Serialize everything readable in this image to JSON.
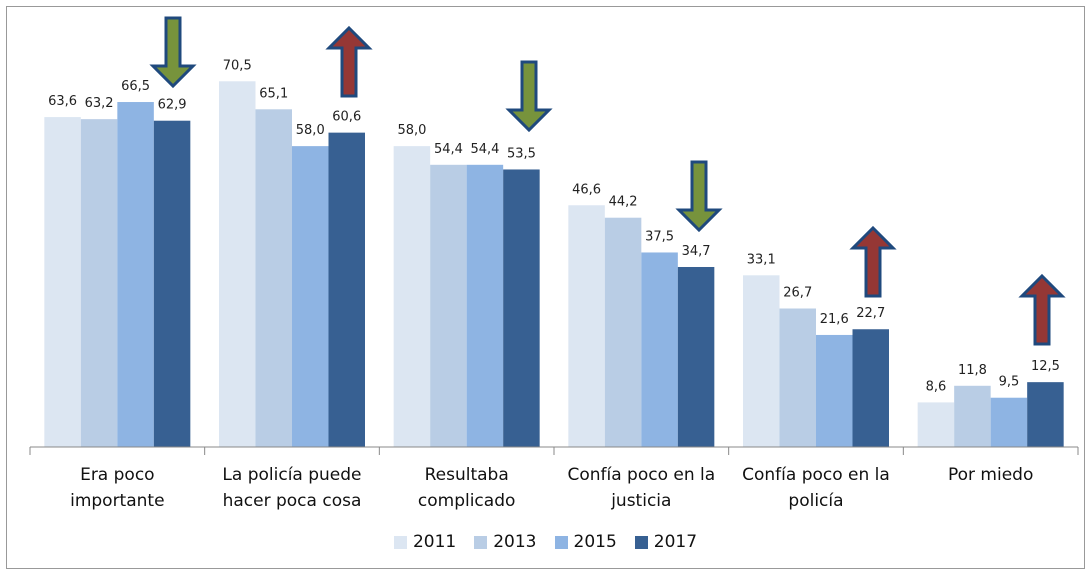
{
  "chart_data": {
    "type": "bar",
    "categories": [
      "Era poco importante",
      "La policía puede hacer poca cosa",
      "Resultaba complicado",
      "Confía poco en la justicia",
      "Confía poco en la policía",
      "Por miedo"
    ],
    "series": [
      {
        "name": "2011",
        "color": "#dce6f2",
        "values": [
          63.6,
          70.5,
          58.0,
          46.6,
          33.1,
          8.6
        ],
        "value_labels": [
          "63,6",
          "70,5",
          "58,0",
          "46,6",
          "33,1",
          "8,6"
        ]
      },
      {
        "name": "2013",
        "color": "#b9cde5",
        "values": [
          63.2,
          65.1,
          54.4,
          44.2,
          26.7,
          11.8
        ],
        "value_labels": [
          "63,2",
          "65,1",
          "54,4",
          "44,2",
          "26,7",
          "11,8"
        ]
      },
      {
        "name": "2015",
        "color": "#8eb4e3",
        "values": [
          66.5,
          58.0,
          54.4,
          37.5,
          21.6,
          9.5
        ],
        "value_labels": [
          "66,5",
          "58,0",
          "54,4",
          "37,5",
          "21,6",
          "9,5"
        ]
      },
      {
        "name": "2017",
        "color": "#376092",
        "values": [
          62.9,
          60.6,
          53.5,
          34.7,
          22.7,
          12.5
        ],
        "value_labels": [
          "62,9",
          "60,6",
          "53,5",
          "34,7",
          "22,7",
          "12,5"
        ]
      }
    ],
    "ylim": [
      0,
      80
    ],
    "legend": "bottom"
  }
}
